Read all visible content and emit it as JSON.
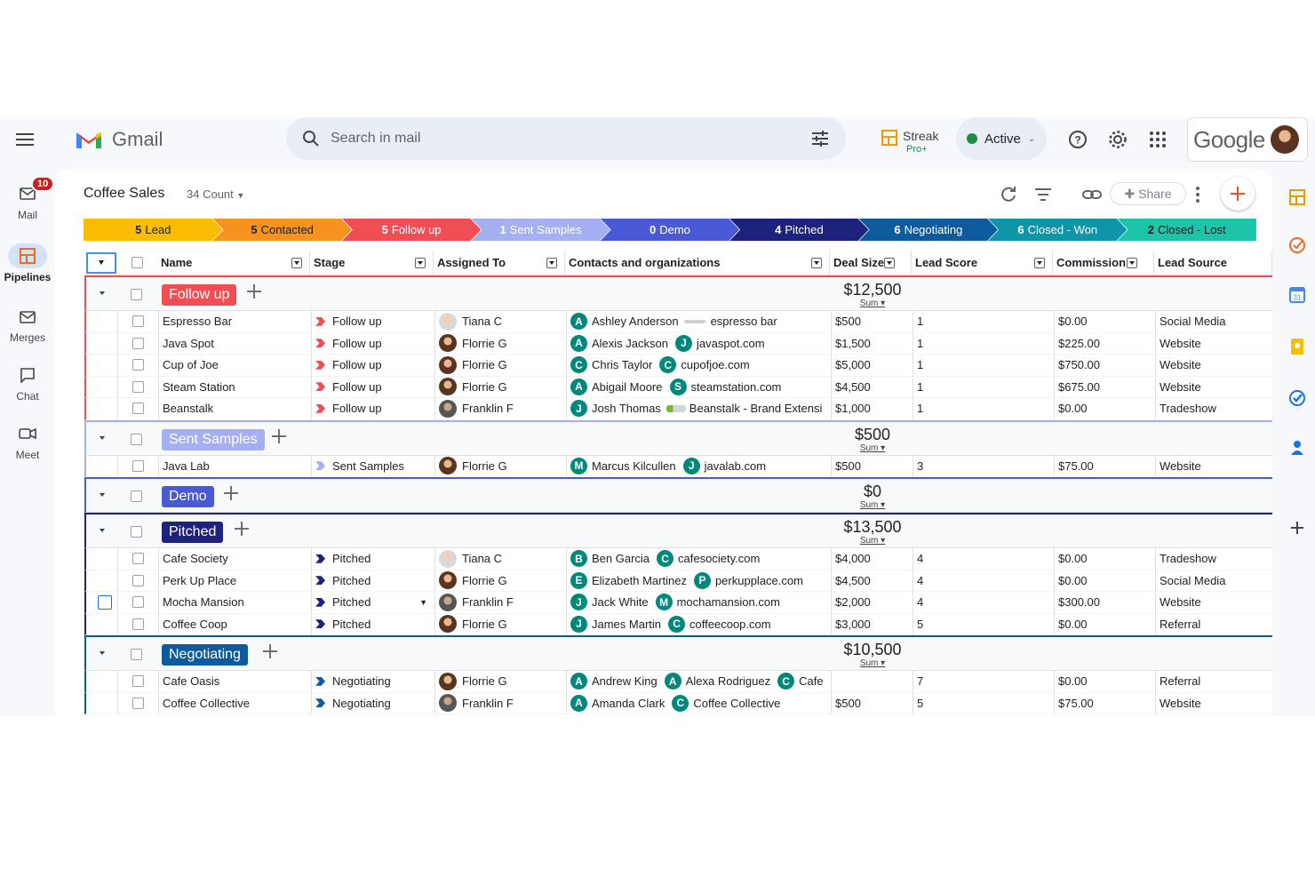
{
  "gmail": {
    "brand": "Gmail",
    "search_placeholder": "Search in mail",
    "status": "Active",
    "streak": {
      "name": "Streak",
      "tier": "Pro+"
    },
    "google_word": "Google",
    "rail": [
      {
        "label": "Mail",
        "badge": "10",
        "icon": "mail-icon"
      },
      {
        "label": "Pipelines",
        "icon": "pipeline-icon",
        "active": true
      },
      {
        "label": "Merges",
        "icon": "merges-icon"
      },
      {
        "label": "Chat",
        "icon": "chat-icon"
      },
      {
        "label": "Meet",
        "icon": "meet-icon"
      }
    ]
  },
  "pipeline": {
    "title": "Coffee Sales",
    "count": "34 Count",
    "share": "Share"
  },
  "ribbon": [
    {
      "n": "5",
      "label": "Lead",
      "bg": "#fbbc04",
      "fg": "#202124"
    },
    {
      "n": "5",
      "label": "Contacted",
      "bg": "#f6921e",
      "fg": "#202124"
    },
    {
      "n": "5",
      "label": "Follow up",
      "bg": "#f04e54",
      "fg": "#ffffff"
    },
    {
      "n": "1",
      "label": "Sent Samples",
      "bg": "#a5b0f2",
      "fg": "#ffffff"
    },
    {
      "n": "0",
      "label": "Demo",
      "bg": "#4a5ad6",
      "fg": "#ffffff"
    },
    {
      "n": "4",
      "label": "Pitched",
      "bg": "#1d237c",
      "fg": "#ffffff"
    },
    {
      "n": "6",
      "label": "Negotiating",
      "bg": "#0d5b9c",
      "fg": "#ffffff"
    },
    {
      "n": "6",
      "label": "Closed - Won",
      "bg": "#0e96a8",
      "fg": "#ffffff"
    },
    {
      "n": "2",
      "label": "Closed - Lost",
      "bg": "#1ec4a7",
      "fg": "#202124"
    }
  ],
  "columns": [
    "Name",
    "Stage",
    "Assigned To",
    "Contacts and organizations",
    "Deal Size",
    "Lead Score",
    "Commission",
    "Lead Source"
  ],
  "groups": [
    {
      "name": "Follow up",
      "color": "#f04e54",
      "sum": "$12,500",
      "sum_label": "Sum",
      "rows": [
        {
          "name": "Espresso Bar",
          "stage": "Follow up",
          "assignee": "Tiana C",
          "av": "t",
          "c1": "A",
          "contact": "Ashley Anderson",
          "orgicon": "line",
          "org": "espresso bar",
          "deal": "$500",
          "score": "1",
          "comm": "$0.00",
          "source": "Social Media"
        },
        {
          "name": "Java Spot",
          "stage": "Follow up",
          "assignee": "Florrie G",
          "av": "f",
          "c1": "A",
          "contact": "Alexis Jackson",
          "c2": "J",
          "org": "javaspot.com",
          "deal": "$1,500",
          "score": "1",
          "comm": "$225.00",
          "source": "Website"
        },
        {
          "name": "Cup of Joe",
          "stage": "Follow up",
          "assignee": "Florrie G",
          "av": "f",
          "c1": "C",
          "contact": "Chris Taylor",
          "c2": "C",
          "org": "cupofjoe.com",
          "deal": "$5,000",
          "score": "1",
          "comm": "$750.00",
          "source": "Website"
        },
        {
          "name": "Steam Station",
          "stage": "Follow up",
          "assignee": "Florrie G",
          "av": "f",
          "c1": "A",
          "contact": "Abigail Moore",
          "c2": "S",
          "org": "steamstation.com",
          "deal": "$4,500",
          "score": "1",
          "comm": "$675.00",
          "source": "Website"
        },
        {
          "name": "Beanstalk",
          "stage": "Follow up",
          "assignee": "Franklin F",
          "av": "k",
          "c1": "J",
          "contact": "Josh Thomas",
          "orgicon": "leaf",
          "org": "Beanstalk - Brand Extensi",
          "deal": "$1,000",
          "score": "1",
          "comm": "$0.00",
          "source": "Tradeshow"
        }
      ]
    },
    {
      "name": "Sent Samples",
      "color": "#a5b0f2",
      "sum": "$500",
      "sum_label": "Sum",
      "rows": [
        {
          "name": "Java Lab",
          "stage": "Sent Samples",
          "assignee": "Florrie G",
          "av": "f",
          "c1": "M",
          "contact": "Marcus Kilcullen",
          "c2": "J",
          "org": "javalab.com",
          "deal": "$500",
          "score": "3",
          "comm": "$75.00",
          "source": "Website"
        }
      ]
    },
    {
      "name": "Demo",
      "color": "#4a5ad6",
      "sum": "$0",
      "sum_label": "Sum",
      "rows": []
    },
    {
      "name": "Pitched",
      "color": "#1d237c",
      "sum": "$13,500",
      "sum_label": "Sum",
      "rows": [
        {
          "name": "Cafe Society",
          "stage": "Pitched",
          "assignee": "Tiana C",
          "av": "t",
          "c1": "B",
          "contact": "Ben Garcia",
          "c2": "C",
          "org": "cafesociety.com",
          "deal": "$4,000",
          "score": "4",
          "comm": "$0.00",
          "source": "Tradeshow"
        },
        {
          "name": "Perk Up Place",
          "stage": "Pitched",
          "assignee": "Florrie G",
          "av": "f",
          "c1": "E",
          "contact": "Elizabeth Martinez",
          "c2": "P",
          "org": "perkupplace.com",
          "deal": "$4,500",
          "score": "4",
          "comm": "$0.00",
          "source": "Social Media"
        },
        {
          "name": "Mocha Mansion",
          "stage": "Pitched",
          "assignee": "Franklin F",
          "av": "k",
          "c1": "J",
          "contact": "Jack White",
          "c2": "M",
          "org": "mochamansion.com",
          "deal": "$2,000",
          "score": "4",
          "comm": "$300.00",
          "source": "Website",
          "editing": true
        },
        {
          "name": "Coffee Coop",
          "stage": "Pitched",
          "assignee": "Florrie G",
          "av": "f",
          "c1": "J",
          "contact": "James Martin",
          "c2": "C",
          "org": "coffeecoop.com",
          "deal": "$3,000",
          "score": "5",
          "comm": "$0.00",
          "source": "Referral"
        }
      ]
    },
    {
      "name": "Negotiating",
      "color": "#0d5b9c",
      "sum": "$10,500",
      "sum_label": "Sum",
      "rows": [
        {
          "name": "Cafe Oasis",
          "stage": "Negotiating",
          "assignee": "Florrie G",
          "av": "f",
          "c1": "A",
          "contact": "Andrew King",
          "c2": "A",
          "org": "Alexa Rodriguez",
          "c3": "C",
          "org2": "Cafe",
          "deal": "",
          "score": "7",
          "comm": "$0.00",
          "source": "Referral"
        },
        {
          "name": "Coffee Collective",
          "stage": "Negotiating",
          "assignee": "Franklin F",
          "av": "k",
          "c1": "A",
          "contact": "Amanda Clark",
          "c2": "C",
          "org": "Coffee Collective",
          "deal": "$500",
          "score": "5",
          "comm": "$75.00",
          "source": "Website"
        }
      ]
    }
  ]
}
